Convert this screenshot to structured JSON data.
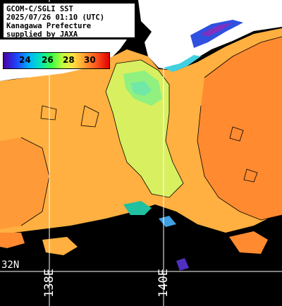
{
  "info": {
    "line1": "GCOM-C/SGLI SST",
    "line2": "2025/07/26 01:10 (UTC)",
    "line3": "Kanagawa Prefecture",
    "line4": "supplied by JAXA"
  },
  "colorbar": {
    "ticks": [
      "24",
      "26",
      "28",
      "30"
    ],
    "colors": [
      "#4b00a0",
      "#2040ff",
      "#00b0ff",
      "#40ff40",
      "#ffe040",
      "#ff6020",
      "#e00000"
    ]
  },
  "grid": {
    "lon_labels": [
      "138E",
      "140E"
    ],
    "lat_label": "32N",
    "line_color": "#ffffff"
  },
  "palette": {
    "warm": "#ff8a30",
    "mid": "#ffb84a",
    "cool": "#b8f070",
    "cooler": "#60e8a0",
    "nodata": "#000000",
    "land": "#ffffff"
  }
}
